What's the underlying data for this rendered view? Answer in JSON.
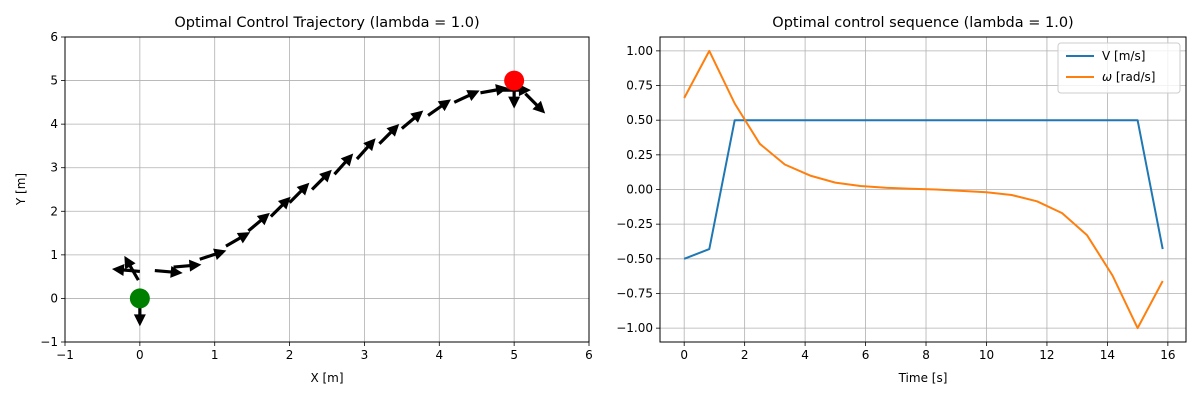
{
  "chart_data": [
    {
      "type": "scatter",
      "title": "Optimal Control Trajectory (lambda = 1.0)",
      "xlabel": "X [m]",
      "ylabel": "Y [m]",
      "xlim": [
        -1,
        6
      ],
      "ylim": [
        -1,
        6
      ],
      "xticks": [
        -1,
        0,
        1,
        2,
        3,
        4,
        5,
        6
      ],
      "yticks": [
        -1,
        0,
        1,
        2,
        3,
        4,
        5,
        6
      ],
      "grid": true,
      "start_point": {
        "x": 0,
        "y": 0,
        "color": "#008000"
      },
      "goal_point": {
        "x": 5,
        "y": 5,
        "color": "#ff0000"
      },
      "arrow_color": "#000000",
      "arrows": [
        {
          "x": 0.0,
          "y": 0.0,
          "angle_deg": -90
        },
        {
          "x": -0.02,
          "y": 0.42,
          "angle_deg": 120
        },
        {
          "x": 0.0,
          "y": 0.62,
          "angle_deg": 175
        },
        {
          "x": 0.2,
          "y": 0.64,
          "angle_deg": -5
        },
        {
          "x": 0.45,
          "y": 0.72,
          "angle_deg": 5
        },
        {
          "x": 0.8,
          "y": 0.9,
          "angle_deg": 18
        },
        {
          "x": 1.15,
          "y": 1.2,
          "angle_deg": 30
        },
        {
          "x": 1.45,
          "y": 1.55,
          "angle_deg": 40
        },
        {
          "x": 1.75,
          "y": 1.88,
          "angle_deg": 45
        },
        {
          "x": 2.0,
          "y": 2.2,
          "angle_deg": 45
        },
        {
          "x": 2.3,
          "y": 2.5,
          "angle_deg": 45
        },
        {
          "x": 2.6,
          "y": 2.85,
          "angle_deg": 48
        },
        {
          "x": 2.9,
          "y": 3.2,
          "angle_deg": 48
        },
        {
          "x": 3.2,
          "y": 3.55,
          "angle_deg": 45
        },
        {
          "x": 3.5,
          "y": 3.9,
          "angle_deg": 40
        },
        {
          "x": 3.85,
          "y": 4.2,
          "angle_deg": 35
        },
        {
          "x": 4.2,
          "y": 4.5,
          "angle_deg": 25
        },
        {
          "x": 4.55,
          "y": 4.72,
          "angle_deg": 10
        },
        {
          "x": 4.85,
          "y": 4.78,
          "angle_deg": 0
        },
        {
          "x": 5.0,
          "y": 5.0,
          "angle_deg": -90
        },
        {
          "x": 5.15,
          "y": 4.7,
          "angle_deg": -45
        }
      ]
    },
    {
      "type": "line",
      "title": "Optimal control sequence (lambda = 1.0)",
      "xlabel": "Time [s]",
      "ylabel": "",
      "xlim": [
        -0.8,
        16.6
      ],
      "ylim": [
        -1.1,
        1.1
      ],
      "xticks": [
        0,
        2,
        4,
        6,
        8,
        10,
        12,
        14,
        16
      ],
      "yticks": [
        -1.0,
        -0.75,
        -0.5,
        -0.25,
        0.0,
        0.25,
        0.5,
        0.75,
        1.0
      ],
      "ytick_labels": [
        "−1.00",
        "−0.75",
        "−0.50",
        "−0.25",
        "0.00",
        "0.25",
        "0.50",
        "0.75",
        "1.00"
      ],
      "grid": true,
      "legend_position": "top-right",
      "series": [
        {
          "name": "V [m/s]",
          "color": "#1f77b4",
          "x": [
            0,
            0.83,
            1.67,
            15.0,
            15.83
          ],
          "y": [
            -0.5,
            -0.43,
            0.5,
            0.5,
            -0.43
          ]
        },
        {
          "name": "ω [rad/s]",
          "name_symbol": "ω",
          "name_unit": " [rad/s]",
          "color": "#ff7f0e",
          "x": [
            0,
            0.83,
            1.67,
            2.5,
            3.33,
            4.17,
            5.0,
            5.83,
            6.67,
            7.5,
            8.33,
            9.17,
            10.0,
            10.83,
            11.67,
            12.5,
            13.33,
            14.17,
            15.0,
            15.83
          ],
          "y": [
            0.66,
            1.0,
            0.62,
            0.33,
            0.18,
            0.1,
            0.05,
            0.025,
            0.012,
            0.005,
            0.0,
            -0.01,
            -0.02,
            -0.04,
            -0.085,
            -0.17,
            -0.33,
            -0.62,
            -1.0,
            -0.66
          ]
        }
      ]
    }
  ]
}
